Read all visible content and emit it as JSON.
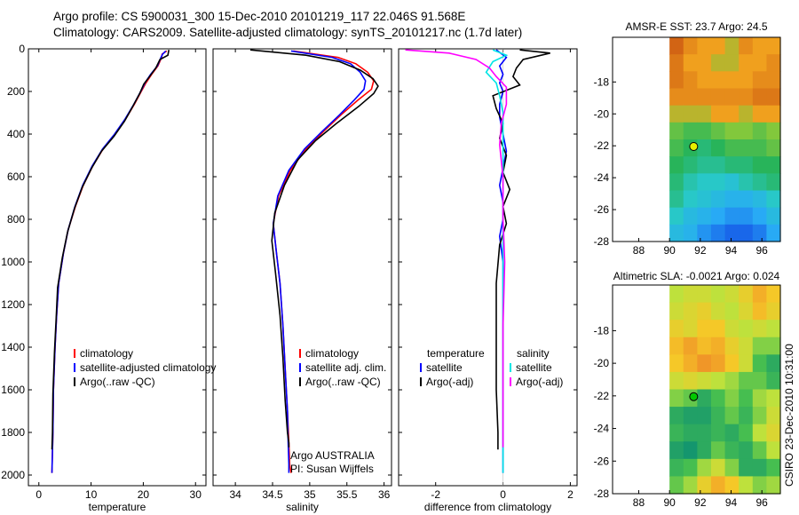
{
  "title": {
    "line1": "Argo profile: CS 5900031_300 15-Dec-2010 20101219_117 22.046S 91.568E",
    "line2": "Climatology: CARS2009. Satellite-adjusted climatology: synTS_20101217.nc (1.7d later)"
  },
  "colors": {
    "climatology": "#ff0000",
    "satellite": "#0000ff",
    "argo": "#000000",
    "sal_satellite": "#00e5e5",
    "sal_argo": "#ff00ff"
  },
  "y_axis": {
    "ylim": [
      0,
      2050
    ],
    "ticks": [
      0,
      200,
      400,
      600,
      800,
      1000,
      1200,
      1400,
      1600,
      1800,
      2000
    ],
    "reversed": true
  },
  "chart_data": [
    {
      "type": "line",
      "id": "temperature",
      "xlabel": "temperature",
      "xlim": [
        -2,
        32
      ],
      "xticks": [
        0,
        10,
        20,
        30
      ],
      "legend": [
        "climatology",
        "satellite-adjusted climatology",
        "Argo(..raw -QC)"
      ],
      "series": [
        {
          "name": "climatology",
          "color": "#ff0000",
          "x": [
            24.5,
            23.6,
            23.5,
            22.8,
            21.6,
            20.5,
            19.6,
            18.3,
            16.6,
            14.6,
            12.3,
            10.3,
            8.5,
            7.0,
            5.6,
            4.7,
            3.8,
            3.4,
            3.1,
            2.8,
            2.7,
            2.5
          ],
          "y": [
            10,
            25,
            40,
            80,
            120,
            160,
            200,
            260,
            330,
            400,
            470,
            550,
            640,
            740,
            850,
            960,
            1100,
            1250,
            1400,
            1600,
            1800,
            1990
          ]
        },
        {
          "name": "satellite-adjusted climatology",
          "color": "#0000ff",
          "x": [
            24.3,
            23.7,
            23.4,
            22.7,
            21.4,
            20.3,
            19.5,
            18.2,
            16.5,
            14.5,
            12.2,
            10.2,
            8.4,
            6.9,
            5.6,
            4.7,
            3.8,
            3.4,
            3.1,
            2.8,
            2.7,
            2.5
          ],
          "y": [
            10,
            25,
            40,
            80,
            120,
            160,
            200,
            260,
            330,
            400,
            470,
            550,
            640,
            740,
            850,
            960,
            1100,
            1250,
            1400,
            1600,
            1800,
            1990
          ]
        },
        {
          "name": "Argo(..raw -QC)",
          "color": "#000000",
          "x": [
            24.9,
            24.7,
            23.2,
            22.4,
            21.2,
            20.1,
            19.3,
            18.0,
            16.4,
            14.4,
            12.0,
            10.1,
            8.3,
            6.8,
            5.5,
            4.5,
            3.6,
            3.3,
            3.0,
            2.7,
            2.6,
            2.5
          ],
          "y": [
            5,
            30,
            50,
            90,
            130,
            165,
            210,
            270,
            340,
            410,
            480,
            560,
            650,
            750,
            860,
            980,
            1120,
            1270,
            1420,
            1620,
            1800,
            1880
          ]
        }
      ]
    },
    {
      "type": "line",
      "id": "salinity",
      "xlabel": "salinity",
      "xlim": [
        33.7,
        36.1
      ],
      "xticks": [
        34,
        34.5,
        35,
        35.5,
        36
      ],
      "legend": [
        "climatology",
        "satellite adj. clim.",
        "Argo(..raw -QC)"
      ],
      "annotation": [
        "Argo AUSTRALIA",
        "PI: Susan Wijffels"
      ],
      "series": [
        {
          "name": "climatology",
          "color": "#ff0000",
          "x": [
            34.78,
            35.38,
            35.62,
            35.78,
            35.86,
            35.83,
            35.65,
            35.42,
            35.18,
            34.95,
            34.74,
            34.58,
            34.51,
            34.55,
            34.6,
            34.64,
            34.67,
            34.7,
            34.72,
            34.73,
            34.75
          ],
          "y": [
            10,
            40,
            70,
            110,
            150,
            190,
            240,
            310,
            390,
            470,
            570,
            690,
            820,
            950,
            1100,
            1300,
            1500,
            1700,
            1850,
            1950,
            1990
          ]
        },
        {
          "name": "satellite adj. clim.",
          "color": "#0000ff",
          "x": [
            34.75,
            35.3,
            35.55,
            35.68,
            35.75,
            35.73,
            35.6,
            35.4,
            35.16,
            34.93,
            34.72,
            34.57,
            34.51,
            34.55,
            34.6,
            34.64,
            34.67,
            34.7,
            34.71,
            34.72,
            34.72
          ],
          "y": [
            10,
            40,
            70,
            110,
            150,
            190,
            240,
            310,
            390,
            470,
            570,
            690,
            820,
            950,
            1100,
            1300,
            1500,
            1700,
            1850,
            1950,
            1990
          ]
        },
        {
          "name": "Argo(..raw -QC)",
          "color": "#000000",
          "x": [
            34.2,
            34.95,
            35.4,
            35.68,
            35.85,
            35.92,
            35.86,
            35.66,
            35.36,
            35.08,
            34.84,
            34.66,
            34.53,
            34.49,
            34.54,
            34.6,
            34.64,
            34.67,
            34.7,
            34.72,
            34.72
          ],
          "y": [
            5,
            30,
            60,
            100,
            140,
            175,
            210,
            270,
            350,
            430,
            520,
            640,
            770,
            900,
            1050,
            1250,
            1450,
            1650,
            1800,
            1850,
            1870
          ]
        }
      ]
    },
    {
      "type": "line",
      "id": "difference",
      "xlabel": "difference from climatology",
      "xlim": [
        -3.1,
        2.2
      ],
      "xticks": [
        -2,
        0,
        2
      ],
      "legend": [
        "temperature",
        "satellite",
        "Argo(-adj)",
        "salinity",
        "satellite",
        "Argo(-adj)"
      ],
      "series": [
        {
          "name": "temperature satellite",
          "color": "#0000ff",
          "x": [
            -0.2,
            0.1,
            -0.1,
            0.0,
            -0.1,
            0.0,
            -0.1,
            -0.1,
            0.0,
            0.1,
            0.0,
            -0.1,
            0.0,
            0.0,
            -0.1,
            0.0,
            0.0,
            0.0,
            0.0,
            0.0
          ],
          "y": [
            5,
            40,
            80,
            120,
            160,
            200,
            260,
            320,
            400,
            480,
            560,
            640,
            720,
            800,
            880,
            1000,
            1200,
            1500,
            1800,
            1990
          ]
        },
        {
          "name": "temperature Argo(-adj)",
          "color": "#000000",
          "x": [
            0.5,
            1.4,
            0.6,
            0.4,
            0.3,
            0.5,
            -0.3,
            -0.2,
            0.0,
            -0.1,
            0.1,
            0.0,
            0.2,
            0.0,
            0.1,
            -0.1,
            -0.2,
            -0.2,
            -0.2,
            -0.15,
            -0.15
          ],
          "y": [
            5,
            20,
            50,
            90,
            130,
            170,
            220,
            280,
            350,
            420,
            500,
            580,
            660,
            740,
            820,
            920,
            1100,
            1350,
            1600,
            1800,
            1880
          ]
        },
        {
          "name": "salinity satellite",
          "color": "#00e5e5",
          "x": [
            -0.3,
            0.1,
            -0.3,
            -0.5,
            -0.2,
            -0.1,
            0.0,
            0.0,
            0.0,
            0.0,
            0.0,
            0.0,
            0.0,
            0.0
          ],
          "y": [
            5,
            30,
            60,
            110,
            160,
            220,
            300,
            420,
            600,
            850,
            1100,
            1400,
            1700,
            1990
          ]
        },
        {
          "name": "salinity Argo(-adj)",
          "color": "#ff00ff",
          "x": [
            -2.9,
            -1.6,
            -0.8,
            -0.4,
            -0.2,
            0.1,
            0.1,
            -0.05,
            -0.1,
            0.0,
            0.0,
            0.05,
            0.0,
            0.0,
            0.0
          ],
          "y": [
            5,
            20,
            50,
            90,
            130,
            180,
            260,
            350,
            450,
            600,
            800,
            1000,
            1300,
            1600,
            1870
          ]
        }
      ]
    },
    {
      "type": "heatmap",
      "id": "sst-map",
      "title": "AMSR-E SST: 23.7  Argo: 24.5",
      "xticks": [
        88,
        90,
        92,
        94,
        96
      ],
      "yticks": [
        -18,
        -20,
        -22,
        -24,
        -26,
        -28
      ],
      "xlim": [
        86.3,
        97.2
      ],
      "ylim": [
        -28,
        -15.2
      ],
      "data_xmin": 90,
      "marker": {
        "lon": 91.568,
        "lat": -22.046,
        "color": "#e6f000"
      },
      "grid": [
        [
          28,
          26,
          25,
          25,
          24,
          26,
          25,
          25
        ],
        [
          27,
          25,
          25,
          24,
          24,
          25,
          25,
          26
        ],
        [
          27,
          26,
          25,
          25,
          25,
          25,
          26,
          26
        ],
        [
          26,
          26,
          26,
          26,
          26,
          26,
          27,
          27
        ],
        [
          24,
          24,
          24,
          25,
          25,
          24,
          25,
          25
        ],
        [
          22,
          21,
          21,
          22,
          23,
          23,
          22,
          23
        ],
        [
          21,
          20,
          19,
          20,
          21,
          21,
          21,
          22
        ],
        [
          20,
          19,
          18,
          18,
          19,
          19,
          20,
          20
        ],
        [
          19,
          17,
          16,
          16,
          15,
          17,
          18,
          19
        ],
        [
          18,
          16,
          15,
          14,
          13,
          13,
          14,
          16
        ],
        [
          16,
          14,
          13,
          12,
          11,
          11,
          12,
          14
        ],
        [
          14,
          13,
          11,
          10,
          9,
          9,
          10,
          12
        ]
      ]
    },
    {
      "type": "heatmap",
      "id": "sla-map",
      "title": "Altimetric SLA: -0.0021  Argo: 0.024",
      "xticks": [
        88,
        90,
        92,
        94,
        96
      ],
      "yticks": [
        -18,
        -20,
        -22,
        -24,
        -26,
        -28
      ],
      "xlim": [
        86.3,
        97.2
      ],
      "ylim": [
        -28,
        -15.2
      ],
      "data_xmin": 90,
      "marker": {
        "lon": 91.568,
        "lat": -22.046,
        "color": "#00c800"
      },
      "grid": [
        [
          18,
          19,
          19,
          18,
          19,
          21,
          24,
          22
        ],
        [
          19,
          20,
          21,
          19,
          18,
          20,
          23,
          21
        ],
        [
          21,
          20,
          22,
          22,
          19,
          18,
          19,
          18
        ],
        [
          23,
          25,
          23,
          24,
          21,
          19,
          16,
          16
        ],
        [
          22,
          24,
          26,
          25,
          22,
          19,
          14,
          12
        ],
        [
          19,
          20,
          19,
          18,
          17,
          15,
          15,
          13
        ],
        [
          16,
          15,
          12,
          14,
          16,
          14,
          17,
          18
        ],
        [
          12,
          11,
          11,
          13,
          15,
          13,
          16,
          19
        ],
        [
          13,
          12,
          12,
          13,
          12,
          14,
          18,
          20
        ],
        [
          11,
          10,
          12,
          15,
          13,
          12,
          15,
          18
        ],
        [
          13,
          14,
          17,
          19,
          16,
          12,
          12,
          14
        ],
        [
          15,
          17,
          21,
          24,
          22,
          18,
          16,
          17
        ]
      ]
    }
  ],
  "side_label": "CSIRO 23-Dec-2010 10:31:00"
}
